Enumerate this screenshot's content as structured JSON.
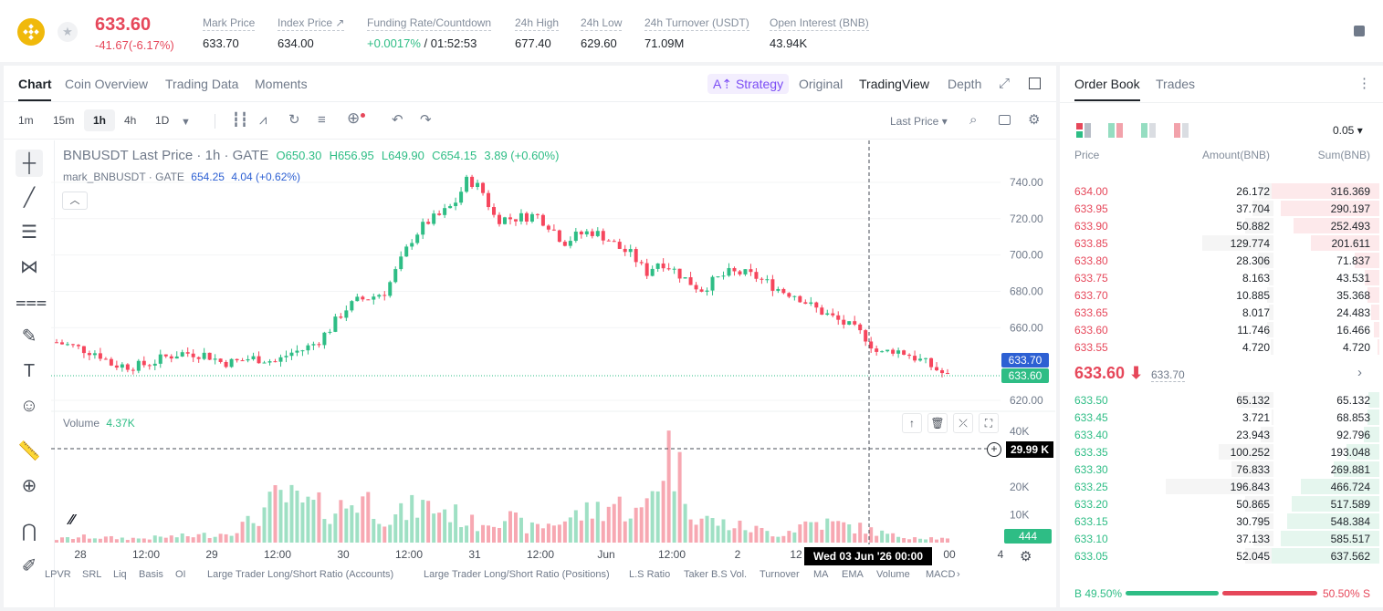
{
  "header": {
    "last_price": "633.60",
    "change": "-41.67(-6.17%)",
    "stats": [
      {
        "label": "Mark Price",
        "value": "633.70"
      },
      {
        "label": "Index Price ↗",
        "value": "634.00"
      },
      {
        "label": "Funding Rate/Countdown",
        "value_green": "+0.0017%",
        "value_rest": " / 01:52:53"
      },
      {
        "label": "24h High",
        "value": "677.40"
      },
      {
        "label": "24h Low",
        "value": "629.60"
      },
      {
        "label": "24h Turnover (USDT)",
        "value": "71.09M"
      },
      {
        "label": "Open Interest (BNB)",
        "value": "43.94K"
      }
    ]
  },
  "chart_tabs": [
    "Chart",
    "Coin Overview",
    "Trading Data",
    "Moments"
  ],
  "view_tabs": {
    "strategy": "A⇡ Strategy",
    "original": "Original",
    "tradingview": "TradingView",
    "depth": "Depth"
  },
  "timeframes": [
    "1m",
    "15m",
    "1h",
    "4h",
    "1D"
  ],
  "price_type": "Last Price ▾",
  "legend": {
    "symbol": "BNBUSDT Last Price · 1h · GATE",
    "o": "O650.30",
    "h": "H656.95",
    "l": "L649.90",
    "c": "C654.15",
    "chg": "3.89 (+0.60%)",
    "mark_label": "mark_BNBUSDT · GATE",
    "mark_val": "654.25",
    "mark_chg": "4.04 (+0.62%)",
    "volume_label": "Volume",
    "volume_val": "4.37K"
  },
  "price_axis": [
    "740.00",
    "720.00",
    "700.00",
    "680.00",
    "660.00",
    "620.00"
  ],
  "volume_axis": [
    "40K",
    "20K",
    "10K"
  ],
  "time_axis": [
    "28",
    "12:00",
    "29",
    "12:00",
    "30",
    "12:00",
    "31",
    "12:00",
    "Jun",
    "12:00",
    "2",
    "12",
    "00",
    "4"
  ],
  "tags": {
    "mark": "633.70",
    "last": "633.60",
    "crosshair_vol": "29.99 K",
    "last_vol": "444",
    "crosshair_date": "Wed 03 Jun '26   00:00"
  },
  "indicators": [
    "LPVR",
    "SRL",
    "Liq",
    "Basis",
    "OI",
    "Large Trader Long/Short Ratio (Accounts)",
    "Large Trader Long/Short Ratio (Positions)",
    "L.S Ratio",
    "Taker B.S Vol.",
    "Turnover",
    "MA",
    "EMA",
    "Volume",
    "MACD"
  ],
  "orderbook": {
    "tabs": [
      "Order Book",
      "Trades"
    ],
    "precision": "0.05 ▾",
    "headers": [
      "Price",
      "Amount(BNB)",
      "Sum(BNB)"
    ],
    "asks": [
      [
        "634.00",
        "26.172",
        "316.369"
      ],
      [
        "633.95",
        "37.704",
        "290.197"
      ],
      [
        "633.90",
        "50.882",
        "252.493"
      ],
      [
        "633.85",
        "129.774",
        "201.611"
      ],
      [
        "633.80",
        "28.306",
        "71.837"
      ],
      [
        "633.75",
        "8.163",
        "43.531"
      ],
      [
        "633.70",
        "10.885",
        "35.368"
      ],
      [
        "633.65",
        "8.017",
        "24.483"
      ],
      [
        "633.60",
        "11.746",
        "16.466"
      ],
      [
        "633.55",
        "4.720",
        "4.720"
      ]
    ],
    "mid_price": "633.60 ⬇",
    "mid_mark": "633.70",
    "bids": [
      [
        "633.50",
        "65.132",
        "65.132"
      ],
      [
        "633.45",
        "3.721",
        "68.853"
      ],
      [
        "633.40",
        "23.943",
        "92.796"
      ],
      [
        "633.35",
        "100.252",
        "193.048"
      ],
      [
        "633.30",
        "76.833",
        "269.881"
      ],
      [
        "633.25",
        "196.843",
        "466.724"
      ],
      [
        "633.20",
        "50.865",
        "517.589"
      ],
      [
        "633.15",
        "30.795",
        "548.384"
      ],
      [
        "633.10",
        "37.133",
        "585.517"
      ],
      [
        "633.05",
        "52.045",
        "637.562"
      ]
    ],
    "buy_ratio": "B  49.50%",
    "sell_ratio": "50.50%  S",
    "buy_pct": 49.5
  },
  "chart_data": {
    "type": "candlestick",
    "symbol": "BNBUSDT",
    "interval": "1h",
    "y_price_range": [
      615,
      748
    ],
    "y_volume_range": [
      0,
      42000
    ],
    "close_path": [
      652,
      650,
      648,
      646,
      640,
      639,
      639,
      641,
      644,
      646,
      646,
      645,
      641,
      641,
      643,
      643,
      641,
      646,
      648,
      652,
      660,
      670,
      675,
      677,
      680,
      695,
      710,
      718,
      722,
      728,
      742,
      736,
      720,
      720,
      721,
      722,
      716,
      707,
      711,
      713,
      710,
      704,
      700,
      690,
      697,
      692,
      686,
      681,
      686,
      690,
      690,
      688,
      684,
      680,
      678,
      672,
      668,
      664,
      660,
      655,
      645,
      648,
      646,
      642,
      638,
      633
    ],
    "volume_peaks": [
      1500,
      2500,
      2000,
      1800,
      2500,
      3000,
      4000,
      9000,
      20000,
      16000,
      14000,
      20000,
      10000,
      16000,
      14000,
      8000,
      12000,
      6000,
      9000,
      13000,
      17000,
      12000,
      41000,
      11000,
      8000,
      6000,
      3500,
      9000,
      8000,
      6000,
      3000,
      2500,
      1500
    ]
  }
}
